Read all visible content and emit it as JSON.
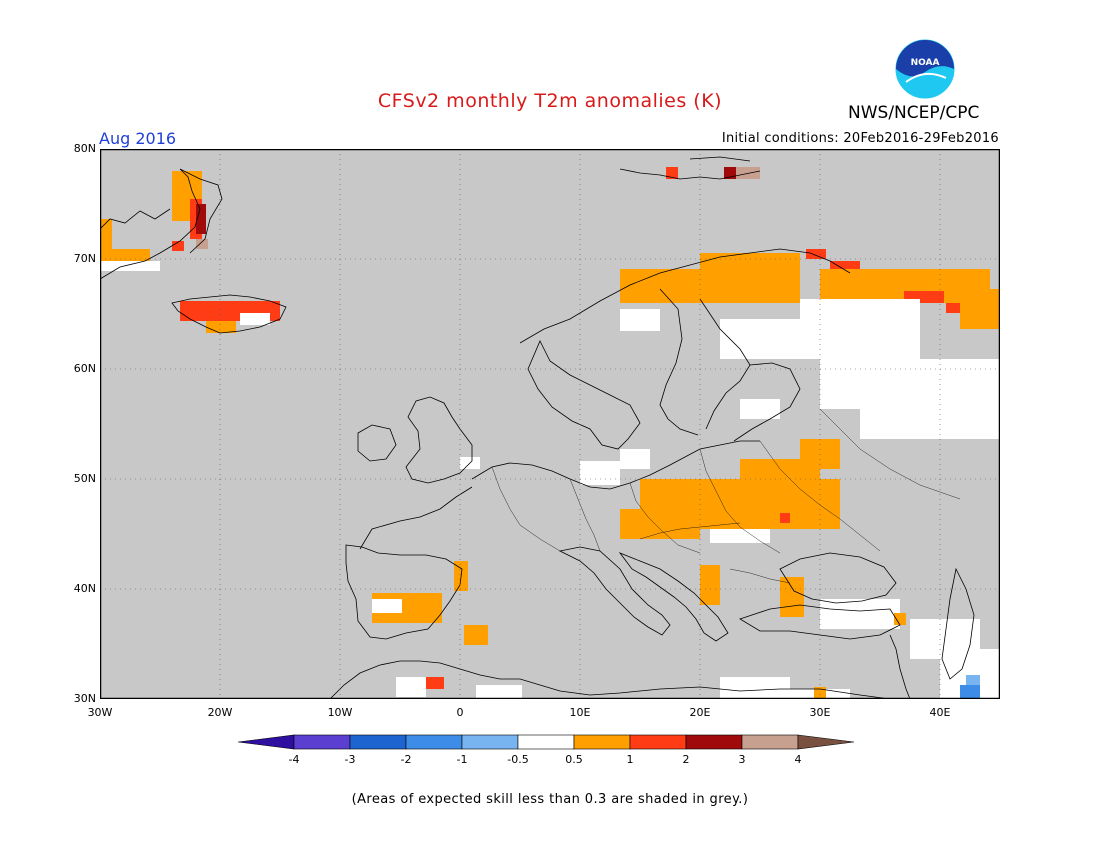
{
  "header": {
    "title": "CFSv2 monthly T2m anomalies (K)",
    "agency": "NWS/NCEP/CPC",
    "logo_text": "NOAA",
    "month": "Aug 2016",
    "initial_conditions": "Initial conditions: 20Feb2016-29Feb2016"
  },
  "map": {
    "lat_labels": [
      "80N",
      "70N",
      "60N",
      "50N",
      "40N",
      "30N"
    ],
    "lon_labels": [
      "30W",
      "20W",
      "10W",
      "0",
      "10E",
      "20E",
      "30E",
      "40E"
    ],
    "lat_range": [
      30,
      80
    ],
    "lon_range": [
      -30,
      45
    ],
    "background_color": "#c8c8c8",
    "gridlines": "dotted"
  },
  "colorbar": {
    "labels": [
      "-4",
      "-3",
      "-2",
      "-1",
      "-0.5",
      "0.5",
      "1",
      "2",
      "3",
      "4"
    ],
    "colors": [
      "#2e0fa0",
      "#5a3fd0",
      "#1e64d0",
      "#3c8ce8",
      "#78b4f0",
      "#ffffff",
      "#ffa000",
      "#ff3c14",
      "#a00a0a",
      "#c8a090",
      "#7a5040"
    ]
  },
  "footnote": "(Areas of expected skill less than 0.3 are shaded in grey.)"
}
